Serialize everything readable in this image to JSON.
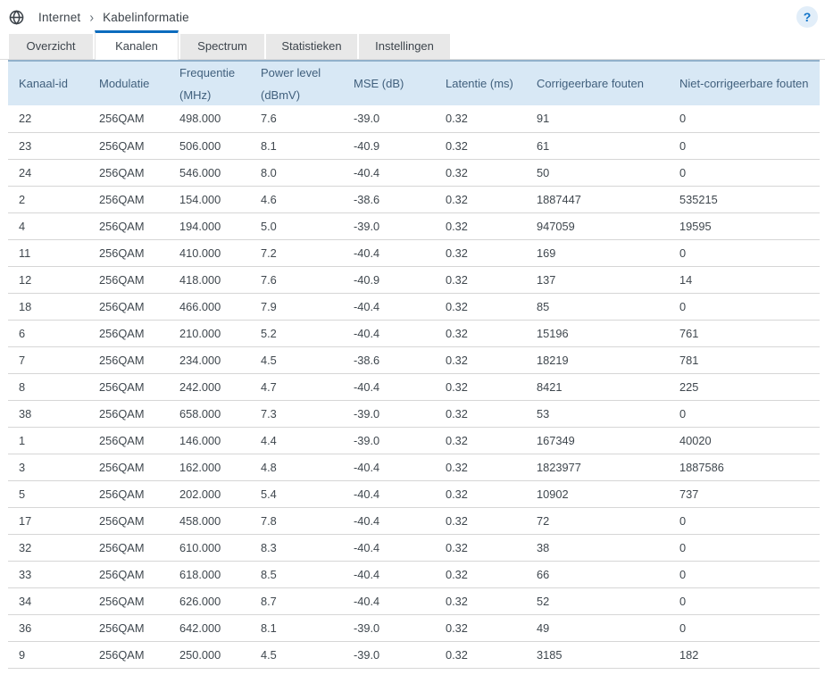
{
  "breadcrumb": {
    "items": [
      "Internet",
      "Kabelinformatie"
    ],
    "separator": "›"
  },
  "help_button": {
    "label": "?"
  },
  "tabs": [
    {
      "id": "overzicht",
      "label": "Overzicht",
      "active": false
    },
    {
      "id": "kanalen",
      "label": "Kanalen",
      "active": true
    },
    {
      "id": "spectrum",
      "label": "Spectrum",
      "active": false
    },
    {
      "id": "statistieken",
      "label": "Statistieken",
      "active": false
    },
    {
      "id": "instellingen",
      "label": "Instellingen",
      "active": false
    }
  ],
  "channels_table": {
    "columns": [
      {
        "id": "kanaal-id",
        "lines": [
          "Kanaal-id"
        ]
      },
      {
        "id": "modulatie",
        "lines": [
          "Modulatie"
        ]
      },
      {
        "id": "frequentie",
        "lines": [
          "Frequentie",
          "(MHz)"
        ]
      },
      {
        "id": "power-level",
        "lines": [
          "Power level",
          "(dBmV)"
        ]
      },
      {
        "id": "mse",
        "lines": [
          "MSE (dB)"
        ]
      },
      {
        "id": "latentie",
        "lines": [
          "Latentie (ms)"
        ]
      },
      {
        "id": "corrigeerbare-fouten",
        "lines": [
          "Corrigeerbare fouten"
        ]
      },
      {
        "id": "niet-corrigeerbare-fouten",
        "lines": [
          "Niet-corrigeerbare fouten"
        ]
      }
    ],
    "rows": [
      [
        "22",
        "256QAM",
        "498.000",
        "7.6",
        "-39.0",
        "0.32",
        "91",
        "0"
      ],
      [
        "23",
        "256QAM",
        "506.000",
        "8.1",
        "-40.9",
        "0.32",
        "61",
        "0"
      ],
      [
        "24",
        "256QAM",
        "546.000",
        "8.0",
        "-40.4",
        "0.32",
        "50",
        "0"
      ],
      [
        "2",
        "256QAM",
        "154.000",
        "4.6",
        "-38.6",
        "0.32",
        "1887447",
        "535215"
      ],
      [
        "4",
        "256QAM",
        "194.000",
        "5.0",
        "-39.0",
        "0.32",
        "947059",
        "19595"
      ],
      [
        "11",
        "256QAM",
        "410.000",
        "7.2",
        "-40.4",
        "0.32",
        "169",
        "0"
      ],
      [
        "12",
        "256QAM",
        "418.000",
        "7.6",
        "-40.9",
        "0.32",
        "137",
        "14"
      ],
      [
        "18",
        "256QAM",
        "466.000",
        "7.9",
        "-40.4",
        "0.32",
        "85",
        "0"
      ],
      [
        "6",
        "256QAM",
        "210.000",
        "5.2",
        "-40.4",
        "0.32",
        "15196",
        "761"
      ],
      [
        "7",
        "256QAM",
        "234.000",
        "4.5",
        "-38.6",
        "0.32",
        "18219",
        "781"
      ],
      [
        "8",
        "256QAM",
        "242.000",
        "4.7",
        "-40.4",
        "0.32",
        "8421",
        "225"
      ],
      [
        "38",
        "256QAM",
        "658.000",
        "7.3",
        "-39.0",
        "0.32",
        "53",
        "0"
      ],
      [
        "1",
        "256QAM",
        "146.000",
        "4.4",
        "-39.0",
        "0.32",
        "167349",
        "40020"
      ],
      [
        "3",
        "256QAM",
        "162.000",
        "4.8",
        "-40.4",
        "0.32",
        "1823977",
        "1887586"
      ],
      [
        "5",
        "256QAM",
        "202.000",
        "5.4",
        "-40.4",
        "0.32",
        "10902",
        "737"
      ],
      [
        "17",
        "256QAM",
        "458.000",
        "7.8",
        "-40.4",
        "0.32",
        "72",
        "0"
      ],
      [
        "32",
        "256QAM",
        "610.000",
        "8.3",
        "-40.4",
        "0.32",
        "38",
        "0"
      ],
      [
        "33",
        "256QAM",
        "618.000",
        "8.5",
        "-40.4",
        "0.32",
        "66",
        "0"
      ],
      [
        "34",
        "256QAM",
        "626.000",
        "8.7",
        "-40.4",
        "0.32",
        "52",
        "0"
      ],
      [
        "36",
        "256QAM",
        "642.000",
        "8.1",
        "-39.0",
        "0.32",
        "49",
        "0"
      ],
      [
        "9",
        "256QAM",
        "250.000",
        "4.5",
        "-39.0",
        "0.32",
        "3185",
        "182"
      ]
    ]
  },
  "colors": {
    "accent_blue": "#0c6cbe",
    "header_bg": "#d8e8f5",
    "header_border": "#92b1cb",
    "header_text": "#41607d",
    "body_text": "#3f474e",
    "row_border": "#d6d6d6",
    "tab_bg": "#e8e8e8",
    "help_bg": "#e2eef9",
    "help_text": "#1173c8"
  }
}
